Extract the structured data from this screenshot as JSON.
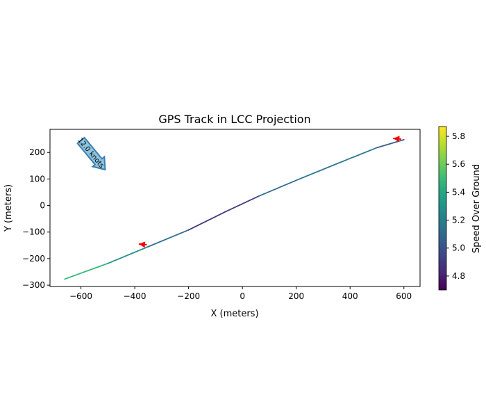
{
  "chart_data": {
    "type": "line",
    "title": "GPS Track in LCC Projection",
    "xlabel": "X (meters)",
    "ylabel": "Y (meters)",
    "xlim": [
      -715,
      660
    ],
    "ylim": [
      -305,
      287
    ],
    "xticks": [
      -600,
      -400,
      -200,
      0,
      200,
      400,
      600
    ],
    "yticks": [
      -300,
      -200,
      -100,
      0,
      100,
      200
    ],
    "grid": false,
    "track": {
      "x": [
        -660,
        -500,
        -350,
        -200,
        -60,
        60,
        200,
        350,
        500,
        600
      ],
      "y": [
        -277,
        -218,
        -155,
        -92,
        -22,
        35,
        95,
        157,
        218,
        248
      ],
      "speed": [
        5.55,
        5.4,
        5.2,
        5.05,
        4.72,
        5.1,
        5.15,
        5.2,
        5.15,
        4.95
      ]
    },
    "colorbar": {
      "label": "Speed Over Ground",
      "range": [
        4.7,
        5.87
      ],
      "ticks": [
        4.8,
        5.0,
        5.2,
        5.4,
        5.6,
        5.8
      ],
      "colormap": [
        "#440154",
        "#482878",
        "#3e4989",
        "#31688e",
        "#26828e",
        "#1f9e89",
        "#35b779",
        "#6ece58",
        "#b5de2b",
        "#fde725"
      ]
    },
    "wind": {
      "label": "12.0 knots",
      "from": [
        -600,
        245
      ],
      "to": [
        -510,
        135
      ],
      "fill": "#8ec4e0",
      "stroke": "#3c7fb1"
    },
    "heading_arrows": [
      {
        "x": -355,
        "y": -148,
        "dx": -30,
        "dy": 3,
        "color": "#ff0000"
      },
      {
        "x": 590,
        "y": 250,
        "dx": -30,
        "dy": 3,
        "color": "#ff0000"
      }
    ]
  }
}
